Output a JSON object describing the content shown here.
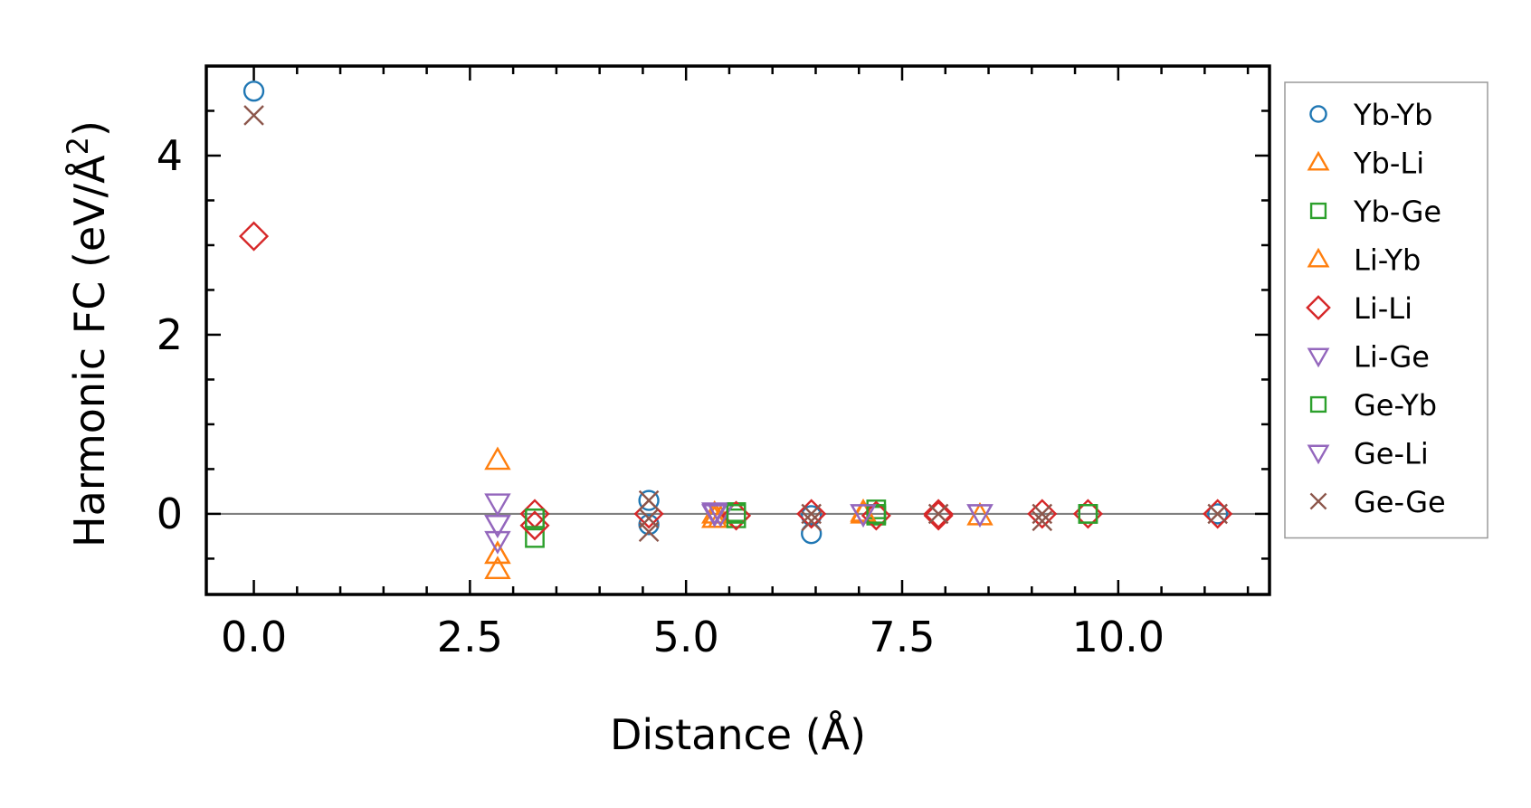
{
  "chart_data": {
    "type": "scatter",
    "xlabel": "Distance (Å)",
    "ylabel": "Harmonic FC (eV/Å²)",
    "ylabel_main": "Harmonic FC (eV/Å",
    "ylabel_sup": "2",
    "ylabel_close": ")",
    "xlim": [
      -0.55,
      11.75
    ],
    "ylim": [
      -0.9,
      5.0
    ],
    "xticks": [
      0.0,
      2.5,
      5.0,
      7.5,
      10.0
    ],
    "xtick_labels": [
      "0.0",
      "2.5",
      "5.0",
      "7.5",
      "10.0"
    ],
    "xticks_minor": [
      0.5,
      1.0,
      1.5,
      2.0,
      3.0,
      3.5,
      4.0,
      4.5,
      5.5,
      6.0,
      6.5,
      7.0,
      8.0,
      8.5,
      9.0,
      9.5,
      10.5,
      11.0,
      11.5
    ],
    "yticks": [
      0,
      2,
      4
    ],
    "ytick_labels": [
      "0",
      "2",
      "4"
    ],
    "yticks_minor": [
      -0.5,
      0.5,
      1.0,
      1.5,
      2.5,
      3.0,
      3.5,
      4.5
    ],
    "hline": 0,
    "grid": false,
    "legend_position": "outside-right",
    "series": [
      {
        "name": "Yb-Yb",
        "marker": "circle",
        "color": "#1f77b4",
        "x": [
          0.0,
          4.57,
          4.57,
          6.45,
          6.45,
          11.15
        ],
        "y": [
          4.72,
          0.15,
          -0.12,
          -0.02,
          -0.22,
          0.0
        ]
      },
      {
        "name": "Yb-Li",
        "marker": "triangle-up",
        "color": "#ff7f0e",
        "x": [
          2.82,
          2.82,
          2.82,
          5.33,
          5.4,
          7.05,
          8.4
        ],
        "y": [
          0.6,
          -0.45,
          -0.62,
          -0.05,
          -0.05,
          0.0,
          -0.02
        ]
      },
      {
        "name": "Yb-Ge",
        "marker": "square",
        "color": "#2ca02c",
        "x": [
          3.25,
          3.25,
          5.58,
          5.58,
          7.2,
          7.2,
          9.65
        ],
        "y": [
          -0.27,
          -0.05,
          0.02,
          -0.05,
          0.05,
          -0.02,
          0.0
        ]
      },
      {
        "name": "Li-Yb",
        "marker": "triangle-up",
        "color": "#ff7f0e",
        "x": [
          2.82,
          5.33,
          7.05
        ],
        "y": [
          -0.45,
          0.0,
          0.02
        ]
      },
      {
        "name": "Li-Li",
        "marker": "diamond",
        "color": "#d62728",
        "x": [
          0.0,
          3.25,
          3.25,
          4.57,
          5.58,
          6.45,
          7.2,
          7.92,
          7.92,
          9.12,
          9.65,
          11.15
        ],
        "y": [
          3.1,
          0.0,
          -0.13,
          0.0,
          -0.02,
          0.0,
          -0.02,
          0.0,
          -0.02,
          0.0,
          0.0,
          0.0
        ]
      },
      {
        "name": "Li-Ge",
        "marker": "triangle-down",
        "color": "#9467bd",
        "x": [
          2.82,
          2.82,
          2.82,
          5.33,
          5.4,
          7.05,
          8.4
        ],
        "y": [
          0.12,
          -0.12,
          -0.3,
          0.02,
          0.0,
          0.0,
          0.0
        ]
      },
      {
        "name": "Ge-Yb",
        "marker": "square",
        "color": "#2ca02c",
        "x": [
          3.25,
          5.58,
          7.2,
          9.65
        ],
        "y": [
          -0.05,
          0.0,
          0.0,
          0.0
        ]
      },
      {
        "name": "Ge-Li",
        "marker": "triangle-down",
        "color": "#9467bd",
        "x": [
          2.82,
          5.33,
          7.05,
          8.4
        ],
        "y": [
          -0.12,
          0.0,
          0.0,
          0.0
        ]
      },
      {
        "name": "Ge-Ge",
        "marker": "x",
        "color": "#8c564b",
        "x": [
          0.0,
          4.57,
          4.57,
          4.57,
          6.45,
          6.45,
          7.92,
          9.12,
          9.12,
          11.15
        ],
        "y": [
          4.45,
          0.15,
          -0.05,
          -0.2,
          0.0,
          -0.08,
          0.0,
          0.0,
          -0.08,
          0.0
        ]
      }
    ]
  }
}
